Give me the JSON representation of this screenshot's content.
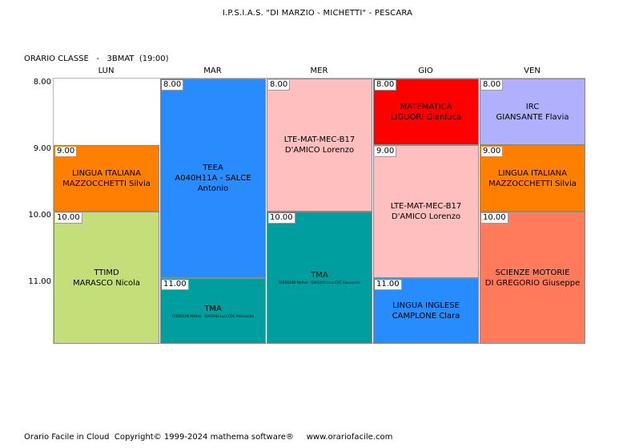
{
  "header": {
    "school": "I.P.S.I.A.S. \"DI MARZIO - MICHETTI\" - PESCARA"
  },
  "class_info": "ORARIO CLASSE   -   3BMAT  (19:00)",
  "days": [
    "LUN",
    "MAR",
    "MER",
    "GIO",
    "VEN"
  ],
  "hours": [
    "8.00",
    "9.00",
    "10.00",
    "11.00"
  ],
  "lessons": {
    "lun_1": {
      "start": "9.00",
      "subject": "LINGUA ITALIANA",
      "teacher": "MAZZOCCHETTI Silvia",
      "color": "#ff8000"
    },
    "lun_2": {
      "start": "10.00",
      "subject": "TTIMD",
      "teacher": "MARASCO Nicola",
      "color": "#c4de7a"
    },
    "mar_1": {
      "start": "8.00",
      "subject": "TEEA",
      "teacher": "A040H11A - SALCE Antonio",
      "color": "#288cff"
    },
    "mar_2": {
      "start": "11.00",
      "subject": "TMA",
      "teacher": "FARDOLINI Matteo - GIAGIULI Luca COC Alessandro",
      "color": "#009e9e"
    },
    "mer_1": {
      "start": "8.00",
      "subject": "LTE-MAT-MEC-B17",
      "teacher": "D'AMICO Lorenzo",
      "color": "#ffbfbf"
    },
    "mer_2": {
      "start": "10.00",
      "subject": "TMA",
      "teacher": "FARDOLINI Matteo - GIAGIULI Luca COC Alessandro",
      "color": "#009e9e"
    },
    "gio_1": {
      "start": "8.00",
      "subject": "MATEMATICA",
      "teacher": "LIGUORI Gianluca",
      "color": "#ff0000"
    },
    "gio_2": {
      "start": "9.00",
      "subject": "LTE-MAT-MEC-B17",
      "teacher": "D'AMICO Lorenzo",
      "color": "#ffbfbf"
    },
    "gio_3": {
      "start": "11.00",
      "subject": "LINGUA INGLESE",
      "teacher": "CAMPLONE Clara",
      "color": "#288cff"
    },
    "ven_1": {
      "start": "8.00",
      "subject": "IRC",
      "teacher": "GIANSANTE Flavia",
      "color": "#b0b0ff"
    },
    "ven_2": {
      "start": "9.00",
      "subject": "LINGUA ITALIANA",
      "teacher": "MAZZOCCHETTI Silvia",
      "color": "#ff8000"
    },
    "ven_3": {
      "start": "10.00",
      "subject": "SCIENZE MOTORIE",
      "teacher": "DI GREGORIO Giuseppe",
      "color": "#ff7b5c"
    }
  },
  "footer": "Orario Facile in Cloud  Copyright© 1999-2024 mathema software®     www.orariofacile.com"
}
